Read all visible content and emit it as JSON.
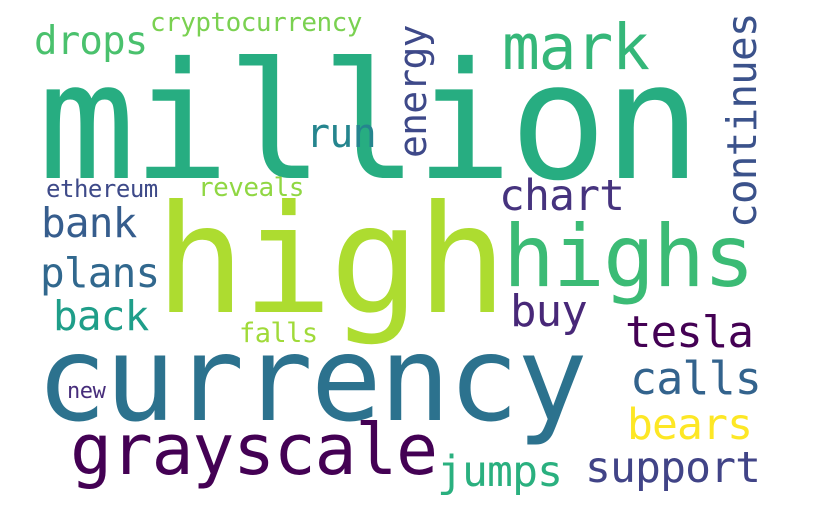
{
  "words": [
    {
      "text": "million",
      "color": "#27ad81"
    },
    {
      "text": "high",
      "color": "#addc30"
    },
    {
      "text": "currency",
      "color": "#2c728e"
    },
    {
      "text": "grayscale",
      "color": "#440154"
    },
    {
      "text": "highs",
      "color": "#3bbb75"
    },
    {
      "text": "mark",
      "color": "#35b779"
    },
    {
      "text": "drops",
      "color": "#4ac16d"
    },
    {
      "text": "cryptocurrency",
      "color": "#7ad151"
    },
    {
      "text": "energy",
      "color": "#3e4989"
    },
    {
      "text": "run",
      "color": "#25858e"
    },
    {
      "text": "continues",
      "color": "#3b528b"
    },
    {
      "text": "ethereum",
      "color": "#3e4a89"
    },
    {
      "text": "reveals",
      "color": "#90d743"
    },
    {
      "text": "chart",
      "color": "#46337e"
    },
    {
      "text": "bank",
      "color": "#365d8d"
    },
    {
      "text": "plans",
      "color": "#31688e"
    },
    {
      "text": "back",
      "color": "#1f9e89"
    },
    {
      "text": "buy",
      "color": "#482878"
    },
    {
      "text": "tesla",
      "color": "#440154"
    },
    {
      "text": "falls",
      "color": "#a0da39"
    },
    {
      "text": "calls",
      "color": "#33638d"
    },
    {
      "text": "new",
      "color": "#472d7b"
    },
    {
      "text": "bears",
      "color": "#fde725"
    },
    {
      "text": "jumps",
      "color": "#2ab07f"
    },
    {
      "text": "support",
      "color": "#414487"
    }
  ]
}
